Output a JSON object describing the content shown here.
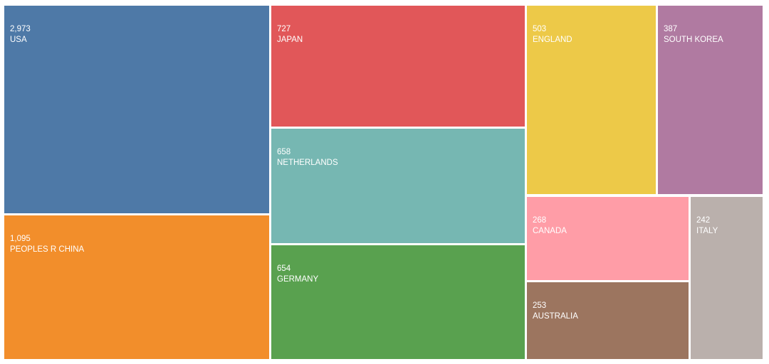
{
  "chart_data": {
    "type": "treemap",
    "title": "",
    "items": [
      {
        "name": "USA",
        "value": 2973,
        "label_value": "2,973",
        "color": "#4e79a7"
      },
      {
        "name": "PEOPLES R CHINA",
        "value": 1095,
        "label_value": "1,095",
        "color": "#f28e2b"
      },
      {
        "name": "JAPAN",
        "value": 727,
        "label_value": "727",
        "color": "#e15759"
      },
      {
        "name": "NETHERLANDS",
        "value": 658,
        "label_value": "658",
        "color": "#76b7b2"
      },
      {
        "name": "GERMANY",
        "value": 654,
        "label_value": "654",
        "color": "#59a14f"
      },
      {
        "name": "ENGLAND",
        "value": 503,
        "label_value": "503",
        "color": "#edc948"
      },
      {
        "name": "SOUTH KOREA",
        "value": 387,
        "label_value": "387",
        "color": "#b07aa1"
      },
      {
        "name": "CANADA",
        "value": 268,
        "label_value": "268",
        "color": "#ff9da7"
      },
      {
        "name": "AUSTRALIA",
        "value": 253,
        "label_value": "253",
        "color": "#9c755f"
      },
      {
        "name": "ITALY",
        "value": 242,
        "label_value": "242",
        "color": "#bab0ac"
      }
    ]
  }
}
